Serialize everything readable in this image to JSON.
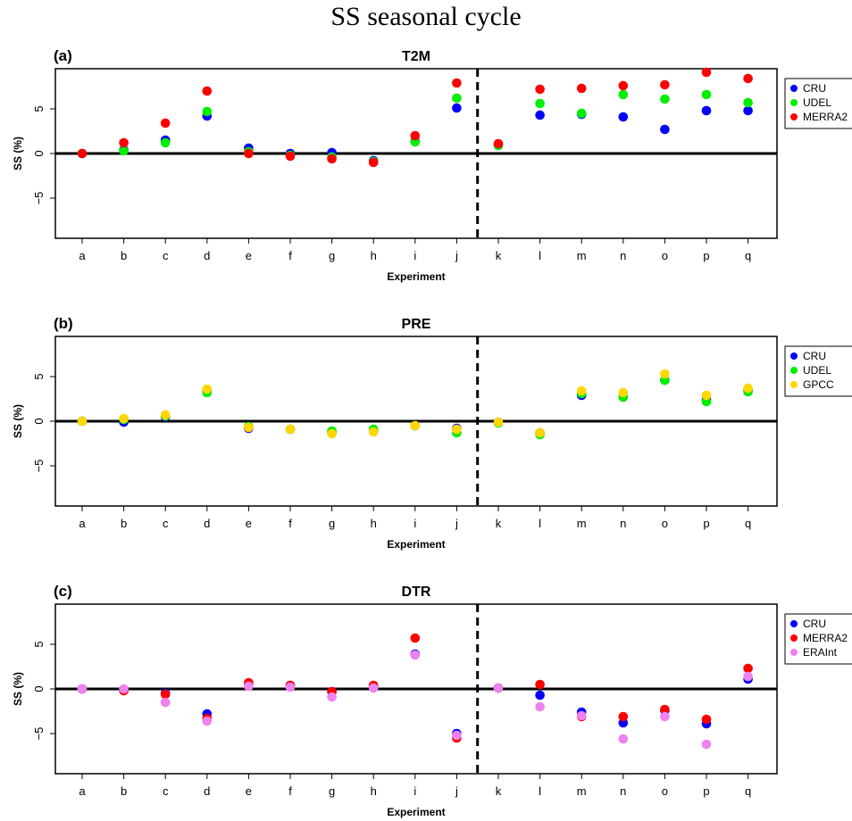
{
  "figure": {
    "title": "SS seasonal cycle"
  },
  "chart_data": [
    {
      "panel": "(a)",
      "type": "scatter",
      "title": "T2M",
      "xlabel": "Experiment",
      "ylabel": "SS (%)",
      "categories": [
        "a",
        "b",
        "c",
        "d",
        "e",
        "f",
        "g",
        "h",
        "i",
        "j",
        "k",
        "l",
        "m",
        "n",
        "o",
        "p",
        "q"
      ],
      "yticks": [
        -5,
        0,
        5
      ],
      "ylim": [
        -9.5,
        9.5
      ],
      "separator_after_index": 9,
      "legend": "right",
      "series": [
        {
          "name": "CRU",
          "color": "#0000ff",
          "values": [
            0,
            0.4,
            1.5,
            4.2,
            0.6,
            0,
            0.1,
            -0.8,
            1.4,
            5.1,
            0.9,
            4.3,
            4.4,
            4.1,
            2.7,
            4.8,
            4.8
          ]
        },
        {
          "name": "UDEL",
          "color": "#00ee00",
          "values": [
            0,
            0.3,
            1.2,
            4.7,
            0.2,
            -0.2,
            -0.4,
            -0.9,
            1.3,
            6.2,
            0.9,
            5.6,
            4.5,
            6.6,
            6.1,
            6.6,
            5.7
          ]
        },
        {
          "name": "MERRA2",
          "color": "#ff0000",
          "values": [
            0,
            1.2,
            3.4,
            7.0,
            0,
            -0.3,
            -0.6,
            -1.0,
            2.0,
            7.9,
            1.1,
            7.2,
            7.3,
            7.6,
            7.7,
            9.1,
            8.4
          ]
        }
      ]
    },
    {
      "panel": "(b)",
      "type": "scatter",
      "title": "PRE",
      "xlabel": "Experiment",
      "ylabel": "SS (%)",
      "categories": [
        "a",
        "b",
        "c",
        "d",
        "e",
        "f",
        "g",
        "h",
        "i",
        "j",
        "k",
        "l",
        "m",
        "n",
        "o",
        "p",
        "q"
      ],
      "yticks": [
        -5,
        0,
        5
      ],
      "ylim": [
        -9.5,
        9.5
      ],
      "separator_after_index": 9,
      "legend": "right",
      "series": [
        {
          "name": "CRU",
          "color": "#0000ff",
          "values": [
            0,
            -0.1,
            0.5,
            3.3,
            -0.8,
            -0.9,
            -1.3,
            -1.1,
            -0.5,
            -0.8,
            -0.1,
            -1.3,
            2.9,
            2.7,
            4.6,
            2.4,
            3.4
          ]
        },
        {
          "name": "UDEL",
          "color": "#00ee00",
          "values": [
            0,
            0.2,
            0.6,
            3.2,
            -0.6,
            -0.9,
            -1.1,
            -0.9,
            -0.5,
            -1.3,
            -0.2,
            -1.5,
            3.1,
            2.7,
            4.6,
            2.2,
            3.3
          ]
        },
        {
          "name": "GPCC",
          "color": "#ffd700",
          "values": [
            0,
            0.3,
            0.7,
            3.6,
            -0.7,
            -0.9,
            -1.4,
            -1.2,
            -0.5,
            -0.9,
            -0.1,
            -1.3,
            3.4,
            3.2,
            5.3,
            2.9,
            3.7
          ]
        }
      ]
    },
    {
      "panel": "(c)",
      "type": "scatter",
      "title": "DTR",
      "xlabel": "Experiment",
      "ylabel": "SS (%)",
      "categories": [
        "a",
        "b",
        "c",
        "d",
        "e",
        "f",
        "g",
        "h",
        "i",
        "j",
        "k",
        "l",
        "m",
        "n",
        "o",
        "p",
        "q"
      ],
      "yticks": [
        -5,
        0,
        5
      ],
      "ylim": [
        -9.5,
        9.5
      ],
      "separator_after_index": 9,
      "legend": "right",
      "series": [
        {
          "name": "CRU",
          "color": "#0000ff",
          "values": [
            0,
            -0.1,
            -0.5,
            -2.8,
            0.6,
            0.4,
            -0.3,
            0.3,
            3.9,
            -5.0,
            0.1,
            -0.7,
            -2.6,
            -3.8,
            -2.4,
            -3.9,
            1.1
          ]
        },
        {
          "name": "MERRA2",
          "color": "#ff0000",
          "values": [
            0,
            -0.2,
            -0.6,
            -3.3,
            0.7,
            0.4,
            -0.3,
            0.4,
            5.7,
            -5.5,
            0.1,
            0.5,
            -3.1,
            -3.1,
            -2.3,
            -3.4,
            2.3
          ]
        },
        {
          "name": "ERAInt",
          "color": "#ee82ee",
          "values": [
            0,
            0,
            -1.5,
            -3.6,
            0.3,
            0.2,
            -0.9,
            0.1,
            3.8,
            -5.2,
            0.1,
            -2.0,
            -3.0,
            -5.6,
            -3.1,
            -6.2,
            1.4
          ]
        }
      ]
    }
  ]
}
